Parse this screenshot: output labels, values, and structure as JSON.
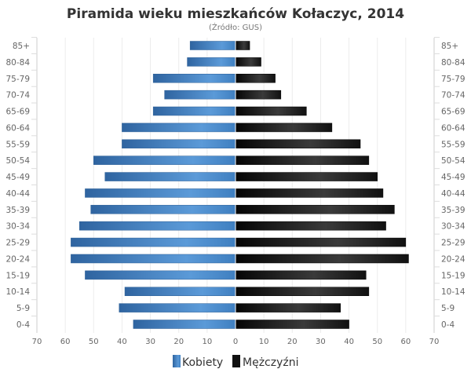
{
  "chart_data": {
    "type": "bar",
    "orientation": "horizontal",
    "subtype": "population-pyramid",
    "title": "Piramida wieku mieszkańców Kołaczyc, 2014",
    "subtitle": "(Źródło: GUS)",
    "categories": [
      "85+",
      "80-84",
      "75-79",
      "70-74",
      "65-69",
      "60-64",
      "55-59",
      "50-54",
      "45-49",
      "40-44",
      "35-39",
      "30-34",
      "25-29",
      "20-24",
      "15-19",
      "10-14",
      "5-9",
      "0-4"
    ],
    "series": [
      {
        "name": "Kobiety",
        "color": "#3f7fc0",
        "side": "left",
        "values": [
          16,
          17,
          29,
          25,
          29,
          40,
          40,
          50,
          46,
          53,
          51,
          55,
          58,
          58,
          53,
          39,
          41,
          36
        ]
      },
      {
        "name": "Mężczyźni",
        "color": "#1a1a1a",
        "side": "right",
        "values": [
          5,
          9,
          14,
          16,
          25,
          34,
          44,
          47,
          50,
          52,
          56,
          53,
          60,
          61,
          46,
          47,
          37,
          40
        ]
      }
    ],
    "xlim": [
      -70,
      70
    ],
    "xticks": [
      "70",
      "60",
      "50",
      "40",
      "30",
      "20",
      "10",
      "0",
      "10",
      "20",
      "30",
      "40",
      "50",
      "60",
      "70"
    ],
    "grid": true,
    "legend": "bottom"
  }
}
